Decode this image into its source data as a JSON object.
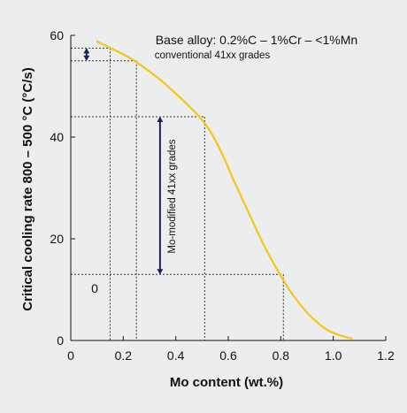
{
  "chart_data": {
    "type": "line",
    "xlabel": "Mo content (wt.%)",
    "ylabel": "Critical cooling rate 800 – 500 °C (°C/s)",
    "xlim": [
      0,
      1.2
    ],
    "ylim": [
      0,
      60
    ],
    "x_ticks": [
      "0",
      "0.2",
      "0.4",
      "0.6",
      "0.8",
      "1.0",
      "1.2"
    ],
    "y_ticks": [
      "0",
      "20",
      "40",
      "60"
    ],
    "grid": false,
    "series": [
      {
        "color": "#f5c518",
        "x": [
          0.1,
          0.14,
          0.18,
          0.22,
          0.26,
          0.3,
          0.34,
          0.38,
          0.42,
          0.46,
          0.5,
          0.54,
          0.58,
          0.62,
          0.66,
          0.7,
          0.74,
          0.78,
          0.82,
          0.86,
          0.9,
          0.94,
          0.98,
          1.02,
          1.07
        ],
        "y": [
          58.8,
          57.8,
          56.8,
          55.7,
          54.4,
          52.9,
          51.3,
          49.5,
          47.6,
          45.6,
          43.4,
          40.4,
          36.3,
          31.6,
          27.1,
          22.6,
          18.3,
          14.5,
          11.0,
          8.0,
          5.5,
          3.5,
          2.0,
          1.1,
          0.4
        ]
      }
    ],
    "annotations": {
      "base_alloy": "Base alloy: 0.2%C – 1%Cr – <1%Mn",
      "conventional": "conventional 41xx grades",
      "modified": "Mo-modified 41xx grades",
      "zero_label": "0"
    },
    "reference_lines": [
      {
        "x": 0.15,
        "y": 57.5
      },
      {
        "x": 0.25,
        "y": 55.0
      },
      {
        "x": 0.51,
        "y": 44.0
      },
      {
        "x": 0.81,
        "y": 13.0
      }
    ],
    "ranges": [
      {
        "x": 0.06,
        "y_from": 57.5,
        "y_to": 55.0
      },
      {
        "x": 0.34,
        "y_from": 44.0,
        "y_to": 13.0
      }
    ]
  }
}
